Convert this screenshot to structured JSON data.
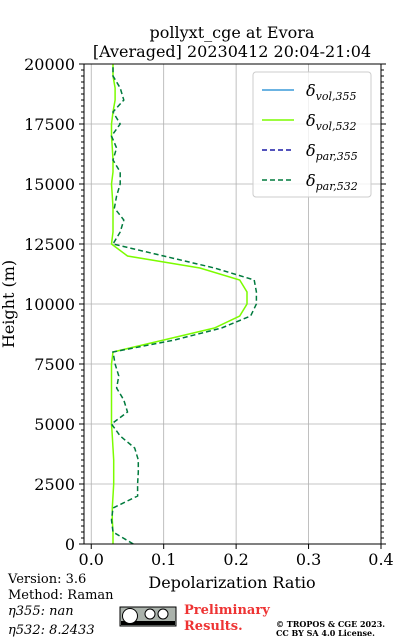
{
  "chart_data": {
    "type": "profile",
    "title": [
      "pollyxt_cge at Evora",
      "[Averaged] 20230412 20:04-21:04"
    ],
    "x_label": "Depolarization Ratio",
    "y_label": "Height (m)",
    "y": [
      0,
      500,
      1000,
      1500,
      2000,
      2500,
      3000,
      3500,
      4000,
      4500,
      5000,
      5500,
      6000,
      6500,
      7000,
      7500,
      8000,
      8500,
      9000,
      9500,
      10000,
      10500,
      11000,
      11500,
      12000,
      12500,
      13000,
      13500,
      14000,
      14500,
      15000,
      15500,
      16000,
      16500,
      17000,
      17500,
      18000,
      18500,
      19000,
      19500,
      20000
    ],
    "series": [
      {
        "name": "δvol,355",
        "color": "#3a9ad9",
        "dashed": false,
        "values": [
          null,
          null,
          null,
          null,
          null,
          null,
          null,
          null,
          null,
          null,
          null,
          null,
          null,
          null,
          null,
          null,
          null,
          null,
          null,
          null,
          null,
          null,
          null,
          null,
          null,
          null,
          null,
          null,
          null,
          null,
          null,
          null,
          null,
          null,
          null,
          null,
          null,
          null,
          null,
          null,
          null
        ]
      },
      {
        "name": "δvol,532",
        "color": "#7cfc00",
        "dashed": false,
        "values": [
          0.03,
          0.03,
          0.029,
          0.029,
          0.03,
          0.031,
          0.031,
          0.031,
          0.03,
          0.029,
          0.028,
          0.028,
          0.028,
          0.028,
          0.028,
          0.028,
          0.03,
          0.1,
          0.17,
          0.205,
          0.215,
          0.215,
          0.205,
          0.15,
          0.05,
          0.028,
          0.03,
          0.03,
          0.03,
          0.029,
          0.028,
          0.03,
          0.03,
          0.029,
          0.028,
          0.028,
          0.03,
          0.033,
          0.033,
          0.03,
          0.03
        ]
      },
      {
        "name": "δpar,355",
        "color": "#1a1aa6",
        "dashed": true,
        "values": [
          null,
          null,
          null,
          null,
          null,
          null,
          null,
          null,
          null,
          null,
          null,
          null,
          null,
          null,
          null,
          null,
          null,
          null,
          null,
          null,
          null,
          null,
          null,
          null,
          null,
          null,
          null,
          null,
          null,
          null,
          null,
          null,
          null,
          null,
          null,
          null,
          null,
          null,
          null,
          null,
          null
        ]
      },
      {
        "name": "δpar,532",
        "color": "#007a3d",
        "dashed": true,
        "values": [
          0.058,
          0.03,
          0.028,
          0.03,
          0.064,
          0.064,
          0.065,
          0.065,
          0.06,
          0.04,
          0.028,
          0.05,
          0.045,
          0.035,
          0.038,
          0.033,
          0.03,
          0.115,
          0.18,
          0.22,
          0.228,
          0.228,
          0.225,
          0.17,
          0.1,
          0.03,
          0.04,
          0.045,
          0.032,
          0.035,
          0.04,
          0.04,
          0.03,
          0.035,
          0.028,
          0.04,
          0.03,
          0.045,
          0.04,
          0.03,
          0.03
        ]
      }
    ],
    "xlim": [
      -0.01,
      0.4
    ],
    "xticks": [
      {
        "value": 0,
        "label": "0.0"
      },
      0.1,
      0.2,
      0.3,
      0.4
    ],
    "ylim": [
      0,
      20000
    ],
    "yticks": [
      0,
      2500,
      5000,
      7500,
      10000,
      12500,
      15000,
      17500,
      20000
    ],
    "grid": true,
    "legend": "upper right"
  },
  "footer": {
    "info": [
      "Version: 3.6",
      "Method: Raman",
      "η355:    nan",
      "η532: 8.2433"
    ],
    "notice": [
      "Preliminary",
      "Results."
    ],
    "copyright": [
      "© TROPOS & CGE 2023.",
      "CC BY SA 4.0 License."
    ]
  }
}
